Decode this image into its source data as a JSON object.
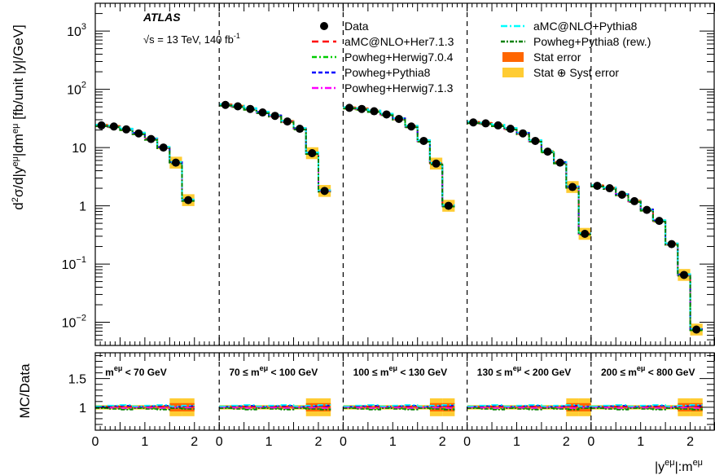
{
  "chart_data": {
    "type": "line",
    "experiment": "ATLAS",
    "lumi_label": "√s = 13 TeV, 140 fb",
    "lumi_sup": "-1",
    "top": {
      "ylabel": "d²σ/d|y^{eμ}|dm^{eμ} [fb/unit |y|/GeV]",
      "yscale": "log",
      "ylim": [
        0.004,
        3000
      ],
      "ytick_labels": [
        {
          "base": "10",
          "sup": "−2",
          "value": 0.01
        },
        {
          "base": "10",
          "sup": "−1",
          "value": 0.1
        },
        {
          "base": "1",
          "sup": "",
          "value": 1
        },
        {
          "base": "10",
          "sup": "",
          "value": 10
        },
        {
          "base": "10",
          "sup": "2",
          "value": 100
        },
        {
          "base": "10",
          "sup": "3",
          "value": 1000
        }
      ]
    },
    "bottom": {
      "ylabel": "MC/Data",
      "ylim": [
        0.6,
        1.95
      ],
      "ytick_labels": [
        "1",
        "1.5"
      ]
    },
    "xlabel": "|y^{eμ}|:m^{eμ}",
    "x_tick_labels": [
      "0",
      "1",
      "2"
    ],
    "bin_edges": [
      0,
      0.25,
      0.5,
      0.75,
      1.0,
      1.25,
      1.5,
      1.75,
      2.0,
      2.25,
      2.5
    ],
    "regions": [
      {
        "label": "m^{eμ} < 70 GeV",
        "data": [
          24,
          23,
          20.5,
          17.5,
          14,
          10,
          5.5,
          1.25
        ]
      },
      {
        "label": "70 ≤ m^{eμ} < 100 GeV",
        "data": [
          54,
          51,
          46,
          40,
          35,
          28,
          21,
          8,
          1.8
        ]
      },
      {
        "label": "100 ≤ m^{eμ} < 130 GeV",
        "data": [
          48,
          46,
          42,
          37,
          31,
          23,
          13,
          5.3,
          1.0
        ]
      },
      {
        "label": "130 ≤ m^{eμ} < 200 GeV",
        "data": [
          27,
          26,
          24,
          21,
          17.5,
          13,
          8.5,
          5.5,
          2.1,
          0.33
        ]
      },
      {
        "label": "200 ≤ m^{eμ} < 800 GeV",
        "data": [
          2.2,
          2.0,
          1.55,
          1.2,
          0.85,
          0.55,
          0.22,
          0.065,
          0.0075
        ]
      }
    ],
    "legend": [
      {
        "label": "Data",
        "kind": "marker",
        "color": "#000000"
      },
      {
        "label": "aMC@NLO+Her7.1.3",
        "kind": "line",
        "dash": "8,5",
        "color": "#ff0000"
      },
      {
        "label": "Powheg+Herwig7.0.4",
        "kind": "line",
        "dash": "6,3,2,3",
        "color": "#00cc00"
      },
      {
        "label": "Powheg+Pythia8",
        "kind": "line",
        "dash": "5,3",
        "color": "#0000ff"
      },
      {
        "label": "Powheg+Herwig7.1.3",
        "kind": "line",
        "dash": "8,3,2,3",
        "color": "#ff00ff"
      },
      {
        "label": "aMC@NLO+Pythia8",
        "kind": "line",
        "dash": "8,3,2,3",
        "color": "#00ffff"
      },
      {
        "label": "Powheg+Pythia8 (rew.)",
        "kind": "line",
        "dash": "5,2,2,2",
        "color": "#008000"
      },
      {
        "label": "Stat error",
        "kind": "box",
        "color": "#ff6600"
      },
      {
        "label": "Stat ⊕ Syst error",
        "kind": "box",
        "color": "#ffcc33"
      }
    ]
  }
}
